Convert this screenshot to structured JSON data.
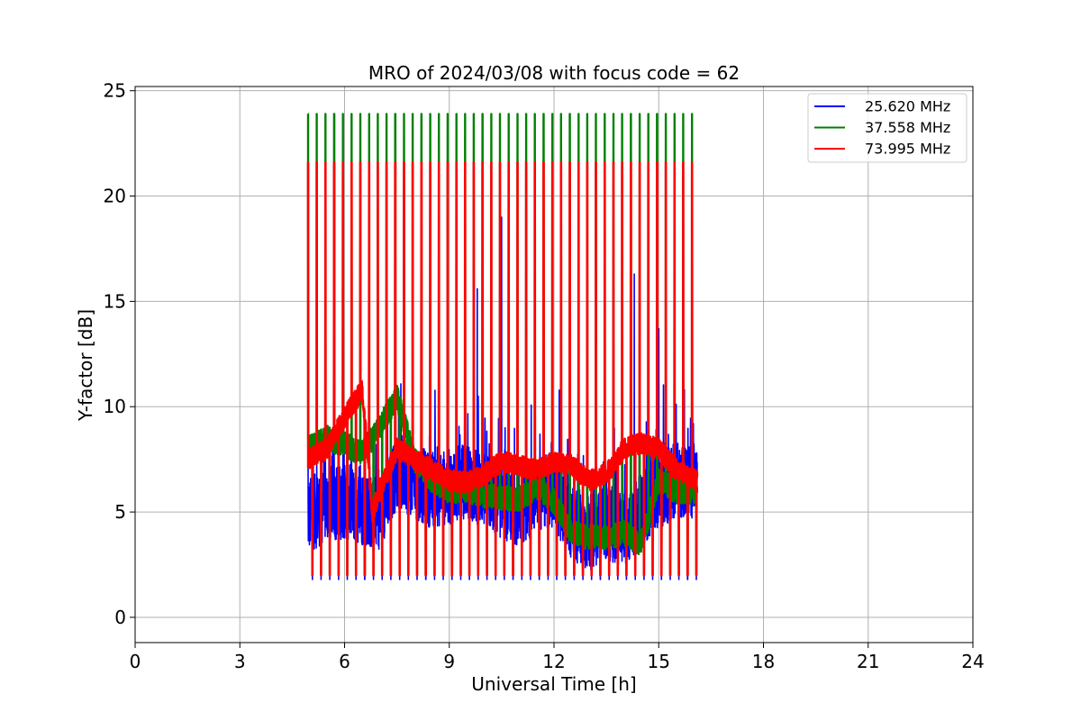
{
  "chart_data": {
    "type": "line",
    "title": "MRO of 2024/03/08 with focus code = 62",
    "xlabel": "Universal Time [h]",
    "ylabel": "Y-factor [dB]",
    "xlim": [
      0,
      24
    ],
    "ylim": [
      -1.2,
      25.2
    ],
    "xticks": [
      0,
      3,
      6,
      9,
      12,
      15,
      18,
      21,
      24
    ],
    "yticks": [
      0,
      5,
      10,
      15,
      20,
      25
    ],
    "grid": true,
    "legend_position": "top-right",
    "time_range": [
      4.95,
      16.1
    ],
    "series": [
      {
        "name": "25.620 MHz",
        "color": "#0000ff",
        "baseline": [
          [
            4.95,
            4.8
          ],
          [
            5.5,
            5.4
          ],
          [
            6.0,
            5.5
          ],
          [
            6.5,
            5.2
          ],
          [
            7.0,
            5.0
          ],
          [
            7.5,
            7.0
          ],
          [
            8.0,
            6.5
          ],
          [
            8.5,
            6.0
          ],
          [
            9.0,
            6.2
          ],
          [
            9.5,
            6.5
          ],
          [
            10.0,
            6.0
          ],
          [
            10.5,
            5.5
          ],
          [
            11.0,
            5.2
          ],
          [
            11.5,
            5.8
          ],
          [
            12.0,
            6.0
          ],
          [
            12.5,
            4.5
          ],
          [
            13.0,
            4.0
          ],
          [
            13.5,
            4.5
          ],
          [
            14.0,
            4.2
          ],
          [
            14.5,
            5.0
          ],
          [
            15.0,
            6.0
          ],
          [
            15.5,
            6.5
          ],
          [
            16.1,
            6.5
          ]
        ],
        "spikes_high": [
          [
            9.8,
            15.6
          ],
          [
            10.5,
            19.0
          ],
          [
            14.3,
            16.3
          ],
          [
            15.0,
            13.7
          ]
        ],
        "noise_amp": 1.8
      },
      {
        "name": "37.558 MHz",
        "color": "#008000",
        "baseline": [
          [
            4.95,
            8.0
          ],
          [
            5.5,
            8.5
          ],
          [
            6.0,
            8.2
          ],
          [
            6.5,
            7.8
          ],
          [
            7.0,
            9.0
          ],
          [
            7.5,
            10.5
          ],
          [
            8.0,
            7.5
          ],
          [
            8.5,
            6.5
          ],
          [
            9.0,
            6.0
          ],
          [
            9.5,
            6.0
          ],
          [
            10.0,
            5.8
          ],
          [
            10.5,
            5.7
          ],
          [
            11.0,
            5.6
          ],
          [
            11.5,
            6.2
          ],
          [
            12.0,
            5.5
          ],
          [
            12.5,
            4.0
          ],
          [
            13.0,
            3.8
          ],
          [
            13.5,
            3.8
          ],
          [
            14.0,
            4.0
          ],
          [
            14.5,
            3.5
          ],
          [
            15.0,
            6.5
          ],
          [
            15.5,
            6.0
          ],
          [
            16.1,
            6.0
          ]
        ],
        "noise_amp": 0.6
      },
      {
        "name": "73.995 MHz",
        "color": "#ff0000",
        "baseline": [
          [
            4.95,
            7.5
          ],
          [
            5.5,
            8.0
          ],
          [
            6.0,
            9.5
          ],
          [
            6.5,
            10.8
          ],
          [
            6.8,
            5.0
          ],
          [
            7.0,
            6.0
          ],
          [
            7.5,
            8.0
          ],
          [
            8.0,
            7.5
          ],
          [
            8.5,
            7.0
          ],
          [
            9.0,
            6.5
          ],
          [
            9.5,
            6.4
          ],
          [
            10.0,
            6.8
          ],
          [
            10.5,
            7.4
          ],
          [
            11.0,
            7.2
          ],
          [
            11.5,
            7.0
          ],
          [
            12.0,
            7.4
          ],
          [
            12.5,
            7.2
          ],
          [
            13.0,
            6.5
          ],
          [
            13.5,
            6.8
          ],
          [
            14.0,
            8.0
          ],
          [
            14.5,
            8.3
          ],
          [
            15.0,
            8.0
          ],
          [
            15.5,
            7.0
          ],
          [
            16.1,
            6.5
          ]
        ],
        "noise_amp": 0.5
      }
    ],
    "calibration_pulses": {
      "period_h": 0.25,
      "red_peak": 21.6,
      "green_peak": 23.9,
      "dip": 2.0
    }
  }
}
